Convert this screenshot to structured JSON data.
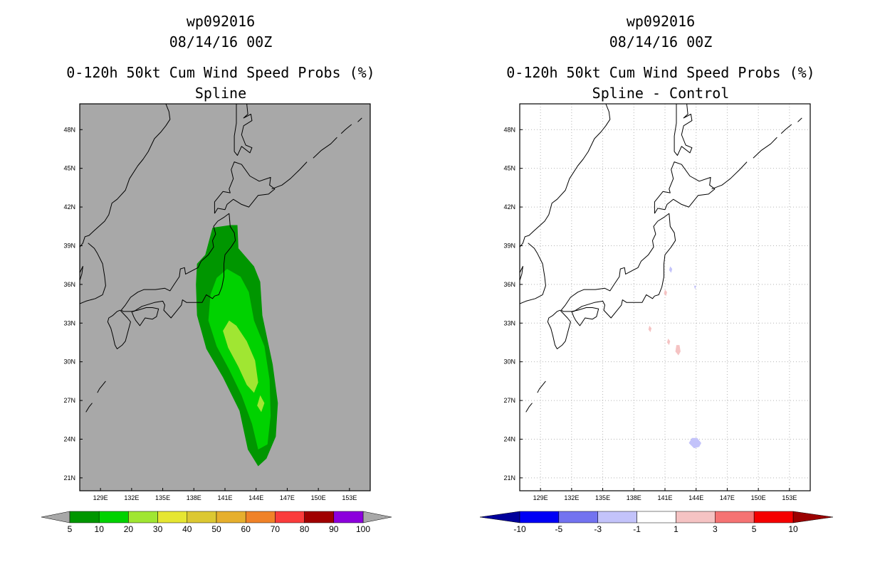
{
  "chart_data": [
    {
      "type": "heatmap",
      "panel": "left",
      "title_lines": [
        "wp092016",
        "08/14/16 00Z",
        "0-120h 50kt Cum Wind Speed Probs (%)",
        "Spline"
      ],
      "storm_id": "wp092016",
      "init_time": "08/14/16 00Z",
      "variable": "0-120h 50kt Cum Wind Speed Probs (%)",
      "label": "Spline",
      "x_ticks": [
        "129E",
        "132E",
        "135E",
        "138E",
        "141E",
        "144E",
        "147E",
        "150E",
        "153E"
      ],
      "y_ticks": [
        "48N",
        "45N",
        "42N",
        "39N",
        "36N",
        "33N",
        "30N",
        "27N",
        "24N",
        "21N"
      ],
      "lon_range": [
        127,
        155
      ],
      "lat_range": [
        20,
        50
      ],
      "background_color": "#a8a8a8",
      "grid": false,
      "colorbar": {
        "levels": [
          "5",
          "10",
          "20",
          "30",
          "40",
          "50",
          "60",
          "70",
          "80",
          "90",
          "100"
        ],
        "colors": [
          "#009600",
          "#00d200",
          "#a0e632",
          "#e6e632",
          "#dcc832",
          "#e6af2d",
          "#f08228",
          "#fa3c3c",
          "#a00000",
          "#8c00dc"
        ],
        "low_end": "#a8a8a8",
        "high_end": "#a8a8a8"
      },
      "contours": [
        {
          "level": "5-10",
          "color": "#009600",
          "polygon": [
            [
              141.5,
              40.6
            ],
            [
              139.8,
              40.4
            ],
            [
              139.1,
              38.3
            ],
            [
              138.3,
              37.6
            ],
            [
              138.2,
              36
            ],
            [
              138.3,
              33.6
            ],
            [
              139.2,
              31
            ],
            [
              140.8,
              28.8
            ],
            [
              142.4,
              26.2
            ],
            [
              143.2,
              23.2
            ],
            [
              144.2,
              21.9
            ],
            [
              145,
              22.5
            ],
            [
              145.9,
              24.2
            ],
            [
              146.1,
              26.8
            ],
            [
              145.6,
              29.8
            ],
            [
              144.6,
              33.6
            ],
            [
              144.4,
              36.2
            ],
            [
              143.8,
              37.4
            ],
            [
              142.3,
              38.8
            ],
            [
              142.2,
              40.6
            ]
          ]
        },
        {
          "level": "10-20",
          "color": "#00d200",
          "polygon": [
            [
              141.2,
              37.2
            ],
            [
              140.2,
              36.5
            ],
            [
              139.6,
              35.2
            ],
            [
              139.4,
              33.2
            ],
            [
              140.2,
              31.2
            ],
            [
              141.4,
              29.4
            ],
            [
              142.6,
              27.4
            ],
            [
              143.6,
              25.2
            ],
            [
              144.2,
              23.2
            ],
            [
              145.1,
              23.6
            ],
            [
              145.4,
              25.8
            ],
            [
              145.3,
              28.6
            ],
            [
              144.8,
              31.2
            ],
            [
              143.8,
              33.2
            ],
            [
              143.3,
              35.4
            ],
            [
              142.5,
              36.6
            ]
          ]
        },
        {
          "level": "20-30",
          "color": "#a0e632",
          "polygon": [
            [
              141.4,
              33.2
            ],
            [
              140.8,
              32.4
            ],
            [
              141.3,
              31.1
            ],
            [
              142.3,
              29.6
            ],
            [
              143.1,
              28.2
            ],
            [
              143.8,
              27.6
            ],
            [
              144.2,
              28.4
            ],
            [
              143.9,
              30.1
            ],
            [
              143.1,
              31.6
            ],
            [
              142.1,
              32.8
            ]
          ]
        },
        {
          "level": "20-30 (south)",
          "color": "#a0e632",
          "polygon": [
            [
              144.4,
              27.4
            ],
            [
              144.1,
              26.6
            ],
            [
              144.5,
              26.1
            ],
            [
              144.8,
              26.8
            ]
          ]
        }
      ]
    },
    {
      "type": "heatmap",
      "panel": "right",
      "title_lines": [
        "wp092016",
        "08/14/16 00Z",
        "0-120h 50kt Cum Wind Speed Probs (%)",
        "Spline - Control"
      ],
      "storm_id": "wp092016",
      "init_time": "08/14/16 00Z",
      "variable": "0-120h 50kt Cum Wind Speed Probs (%)",
      "label": "Spline - Control",
      "x_ticks": [
        "129E",
        "132E",
        "135E",
        "138E",
        "141E",
        "144E",
        "147E",
        "150E",
        "153E"
      ],
      "y_ticks": [
        "48N",
        "45N",
        "42N",
        "39N",
        "36N",
        "33N",
        "30N",
        "27N",
        "24N",
        "21N"
      ],
      "lon_range": [
        127,
        155
      ],
      "lat_range": [
        20,
        50
      ],
      "background_color": "#ffffff",
      "grid": true,
      "colorbar": {
        "levels": [
          "-10",
          "-5",
          "-3",
          "-1",
          "1",
          "3",
          "5",
          "10"
        ],
        "colors": [
          "#0000f5",
          "#7373f0",
          "#c3c3fa",
          "#ffffff",
          "#f5c3c3",
          "#f57373",
          "#f50000"
        ],
        "low_end": "#00009b",
        "high_end": "#9b0000"
      },
      "contours": [
        {
          "level": "-3 to -1",
          "color": "#c3c3fa",
          "polygon": [
            [
              143.3,
              23.7
            ],
            [
              143.8,
              23.3
            ],
            [
              144.3,
              23.4
            ],
            [
              144.5,
              23.7
            ],
            [
              144.1,
              24.1
            ],
            [
              143.6,
              24.1
            ]
          ]
        },
        {
          "level": "-3 to -1",
          "color": "#c3c3fa",
          "polygon": [
            [
              141.4,
              37.1
            ],
            [
              141.6,
              36.9
            ],
            [
              141.7,
              37.2
            ],
            [
              141.5,
              37.4
            ]
          ]
        },
        {
          "level": "-3 to -1",
          "color": "#c3c3fa",
          "polygon": [
            [
              143.8,
              35.9
            ],
            [
              143.9,
              35.6
            ],
            [
              144,
              35.9
            ]
          ]
        },
        {
          "level": "1 to 3",
          "color": "#f5c3c3",
          "polygon": [
            [
              142.0,
              30.8
            ],
            [
              142.3,
              30.5
            ],
            [
              142.5,
              30.8
            ],
            [
              142.4,
              31.3
            ],
            [
              142.1,
              31.3
            ]
          ]
        },
        {
          "level": "1 to 3",
          "color": "#f5c3c3",
          "polygon": [
            [
              139.4,
              32.5
            ],
            [
              139.6,
              32.3
            ],
            [
              139.7,
              32.6
            ],
            [
              139.5,
              32.8
            ]
          ]
        },
        {
          "level": "1 to 3",
          "color": "#f5c3c3",
          "polygon": [
            [
              141.2,
              31.5
            ],
            [
              141.4,
              31.3
            ],
            [
              141.5,
              31.6
            ],
            [
              141.3,
              31.8
            ]
          ]
        },
        {
          "level": "1 to 3",
          "color": "#f5c3c3",
          "polygon": [
            [
              140.9,
              35.3
            ],
            [
              141.1,
              35.1
            ],
            [
              141.2,
              35.4
            ],
            [
              141,
              35.6
            ]
          ]
        }
      ]
    }
  ],
  "coastlines": [
    [
      [
        141.4,
        41.5
      ],
      [
        140.9,
        41.2
      ],
      [
        140.3,
        40.9
      ],
      [
        139.9,
        40.5
      ],
      [
        140.1,
        39.9
      ],
      [
        139.8,
        39.4
      ],
      [
        139.9,
        38.9
      ],
      [
        139.4,
        38.3
      ],
      [
        138.7,
        37.8
      ],
      [
        138.4,
        37.3
      ],
      [
        137.2,
        36.8
      ],
      [
        137.1,
        37.3
      ],
      [
        136.7,
        37.2
      ],
      [
        136.6,
        36.6
      ],
      [
        136.1,
        36.0
      ],
      [
        135.7,
        35.5
      ],
      [
        135.2,
        35.7
      ],
      [
        134.3,
        35.6
      ],
      [
        133.2,
        35.6
      ],
      [
        132.6,
        35.4
      ],
      [
        131.9,
        35.0
      ],
      [
        131.4,
        34.4
      ],
      [
        131.0,
        34.0
      ],
      [
        131.2,
        33.9
      ],
      [
        132.2,
        33.9
      ],
      [
        133.0,
        34.3
      ],
      [
        134.2,
        34.6
      ],
      [
        135.0,
        34.7
      ],
      [
        135.2,
        34.4
      ],
      [
        135.1,
        34.0
      ],
      [
        135.8,
        33.4
      ],
      [
        136.3,
        33.9
      ],
      [
        136.8,
        34.4
      ],
      [
        136.9,
        34.8
      ],
      [
        137.3,
        34.6
      ],
      [
        138.2,
        34.6
      ],
      [
        138.8,
        34.6
      ],
      [
        139.2,
        35.2
      ],
      [
        139.8,
        34.9
      ],
      [
        140.0,
        35.1
      ],
      [
        140.4,
        35.2
      ],
      [
        140.7,
        35.8
      ],
      [
        140.9,
        36.6
      ],
      [
        140.9,
        37.6
      ],
      [
        141.0,
        38.3
      ],
      [
        141.6,
        38.9
      ],
      [
        142.0,
        39.4
      ],
      [
        141.9,
        40.0
      ],
      [
        141.5,
        40.5
      ],
      [
        141.4,
        41.5
      ]
    ],
    [
      [
        140.0,
        41.5
      ],
      [
        140.3,
        41.9
      ],
      [
        141.0,
        41.8
      ],
      [
        141.2,
        42.2
      ],
      [
        141.8,
        42.6
      ],
      [
        142.6,
        42.2
      ],
      [
        143.3,
        42.0
      ],
      [
        144.2,
        42.9
      ],
      [
        145.2,
        43.0
      ],
      [
        145.8,
        43.4
      ],
      [
        145.3,
        43.7
      ],
      [
        145.4,
        44.3
      ],
      [
        144.3,
        44.0
      ],
      [
        143.4,
        44.4
      ],
      [
        142.6,
        45.3
      ],
      [
        141.9,
        45.5
      ],
      [
        141.6,
        44.9
      ],
      [
        141.8,
        44.2
      ],
      [
        141.4,
        43.4
      ],
      [
        141.5,
        43.1
      ],
      [
        140.8,
        43.2
      ],
      [
        140.4,
        42.8
      ],
      [
        140.0,
        42.4
      ],
      [
        140.0,
        41.5
      ]
    ],
    [
      [
        130.9,
        34.0
      ],
      [
        130.6,
        33.9
      ],
      [
        130.2,
        33.6
      ],
      [
        129.8,
        33.4
      ],
      [
        129.7,
        33.1
      ],
      [
        130.0,
        32.6
      ],
      [
        130.2,
        32.0
      ],
      [
        130.4,
        31.3
      ],
      [
        130.6,
        31.0
      ],
      [
        131.1,
        31.3
      ],
      [
        131.4,
        31.6
      ],
      [
        131.7,
        32.5
      ],
      [
        131.9,
        33.1
      ],
      [
        131.6,
        33.4
      ],
      [
        131.0,
        33.9
      ],
      [
        130.9,
        34.0
      ]
    ],
    [
      [
        132.0,
        33.9
      ],
      [
        132.6,
        34.0
      ],
      [
        133.4,
        34.2
      ],
      [
        134.0,
        34.2
      ],
      [
        134.6,
        34.1
      ],
      [
        134.4,
        33.5
      ],
      [
        134.0,
        33.3
      ],
      [
        133.3,
        33.4
      ],
      [
        132.8,
        32.8
      ],
      [
        132.4,
        33.2
      ],
      [
        132.2,
        33.5
      ],
      [
        132.0,
        33.9
      ]
    ],
    [
      [
        141.9,
        46.3
      ],
      [
        141.9,
        47.5
      ],
      [
        142.1,
        48.5
      ],
      [
        142.1,
        49.8
      ],
      [
        142.1,
        50
      ]
    ],
    [
      [
        143.1,
        50
      ],
      [
        143.2,
        49.2
      ],
      [
        142.8,
        48.9
      ],
      [
        143.5,
        49.2
      ],
      [
        143.6,
        48.7
      ],
      [
        142.8,
        48.3
      ],
      [
        142.6,
        47.6
      ],
      [
        143.0,
        46.8
      ],
      [
        143.6,
        46.6
      ],
      [
        143.4,
        46.2
      ],
      [
        142.6,
        46.7
      ],
      [
        142.2,
        46.0
      ],
      [
        141.9,
        46.3
      ]
    ],
    [
      [
        135.3,
        50
      ],
      [
        135.6,
        49.4
      ],
      [
        135.7,
        48.8
      ],
      [
        135.3,
        48.3
      ],
      [
        134.8,
        47.8
      ],
      [
        134.2,
        47.3
      ],
      [
        133.6,
        46.3
      ],
      [
        133.1,
        45.7
      ],
      [
        132.6,
        45.2
      ],
      [
        131.8,
        44.2
      ],
      [
        131.4,
        43.3
      ],
      [
        130.6,
        42.6
      ],
      [
        130.1,
        42.3
      ],
      [
        129.8,
        41.4
      ],
      [
        129.4,
        40.9
      ],
      [
        128.3,
        40.1
      ],
      [
        127.9,
        39.8
      ],
      [
        127.5,
        39.7
      ],
      [
        127.3,
        39.2
      ],
      [
        127.0,
        38.9
      ]
    ],
    [
      [
        127.0,
        36.9
      ],
      [
        127.3,
        37.4
      ],
      [
        127.2,
        36.8
      ],
      [
        127.0,
        36.3
      ],
      [
        127.0,
        34.5
      ],
      [
        127.6,
        34.7
      ],
      [
        128.5,
        34.9
      ],
      [
        129.2,
        35.2
      ],
      [
        129.5,
        35.9
      ],
      [
        129.4,
        36.6
      ],
      [
        129.2,
        37.6
      ],
      [
        128.7,
        38.4
      ],
      [
        128.4,
        38.8
      ],
      [
        127.8,
        39.2
      ]
    ],
    [
      [
        145.5,
        43.4
      ],
      [
        146.5,
        43.7
      ],
      [
        147.3,
        44.2
      ],
      [
        148.2,
        44.9
      ],
      [
        148.9,
        45.5
      ]
    ],
    [
      [
        149.5,
        45.8
      ],
      [
        150.3,
        46.4
      ],
      [
        151.2,
        46.9
      ],
      [
        151.8,
        47.4
      ]
    ],
    [
      [
        152.2,
        47.7
      ],
      [
        152.6,
        48.0
      ],
      [
        153.2,
        48.4
      ]
    ],
    [
      [
        153.8,
        48.6
      ],
      [
        154.2,
        48.9
      ]
    ],
    [
      [
        128.7,
        27.6
      ],
      [
        128.9,
        27.9
      ],
      [
        129.2,
        28.2
      ],
      [
        129.5,
        28.5
      ]
    ],
    [
      [
        127.6,
        26.1
      ],
      [
        127.9,
        26.5
      ],
      [
        128.2,
        26.8
      ]
    ],
    [
      [
        126.6,
        26.0
      ],
      [
        127.0,
        26.3
      ]
    ]
  ]
}
